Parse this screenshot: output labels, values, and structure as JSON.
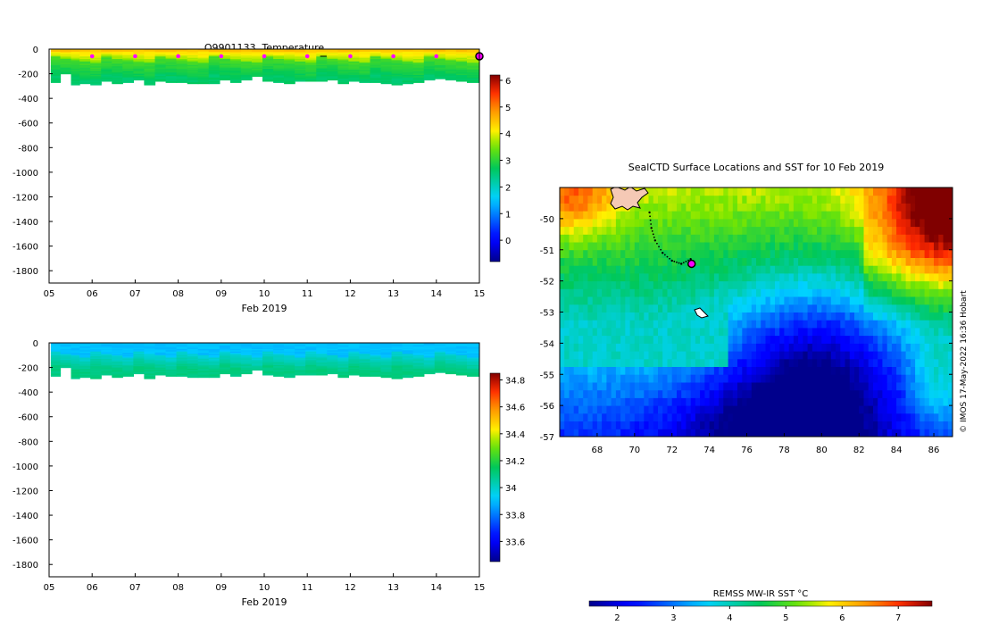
{
  "colors": {
    "axis": "#000000",
    "marker_magenta": "#ff00ff",
    "land_fill": "#f5c9b5"
  },
  "chart_data": [
    {
      "id": "temperature",
      "type": "heatmap",
      "title": "Q9901133  Temperature",
      "xlabel": "Feb 2019",
      "ylabel": "",
      "x_ticks": [
        "05",
        "06",
        "07",
        "08",
        "09",
        "10",
        "11",
        "12",
        "13",
        "14",
        "15"
      ],
      "xlim": [
        5,
        15
      ],
      "ylim": [
        -1900,
        0
      ],
      "y_ticks": [
        0,
        -200,
        -400,
        -600,
        -800,
        -1000,
        -1200,
        -1400,
        -1600,
        -1800
      ],
      "colorbar": {
        "min": -0.8,
        "max": 6.2,
        "ticks": [
          0,
          1,
          2,
          3,
          4,
          5,
          6
        ]
      },
      "surface_markers_day": [
        6,
        7,
        8,
        9,
        10,
        11,
        12,
        13,
        14
      ],
      "profiles": {
        "day": [
          5.08,
          5.3,
          5.55,
          5.75,
          6.0,
          6.25,
          6.5,
          6.75,
          7.0,
          7.25,
          7.5,
          7.75,
          8.0,
          8.25,
          8.5,
          8.75,
          9.0,
          9.25,
          9.5,
          9.75,
          10.0,
          10.25,
          10.5,
          10.75,
          11.0,
          11.25,
          11.5,
          11.75,
          12.0,
          12.25,
          12.5,
          12.75,
          13.0,
          13.25,
          13.5,
          13.75,
          14.0,
          14.25,
          14.5,
          14.75
        ],
        "depth_m": [
          270,
          200,
          285,
          280,
          290,
          260,
          275,
          270,
          250,
          285,
          260,
          265,
          270,
          275,
          280,
          280,
          250,
          270,
          250,
          220,
          255,
          270,
          280,
          260,
          260,
          255,
          250,
          280,
          260,
          270,
          265,
          275,
          290,
          275,
          270,
          250,
          240,
          250,
          260,
          270
        ]
      }
    },
    {
      "id": "salinity",
      "type": "heatmap",
      "title": "",
      "xlabel": "Feb 2019",
      "ylabel": "",
      "x_ticks": [
        "05",
        "06",
        "07",
        "08",
        "09",
        "10",
        "11",
        "12",
        "13",
        "14",
        "15"
      ],
      "xlim": [
        5,
        15
      ],
      "ylim": [
        -1900,
        0
      ],
      "y_ticks": [
        0,
        -200,
        -400,
        -600,
        -800,
        -1000,
        -1200,
        -1400,
        -1600,
        -1800
      ],
      "colorbar": {
        "min": 33.45,
        "max": 34.85,
        "ticks": [
          "33.6",
          "33.8",
          "34",
          "34.2",
          "34.4",
          "34.6",
          "34.8"
        ]
      }
    },
    {
      "id": "sst_map",
      "type": "heatmap",
      "title": "SealCTD Surface Locations and SST for 10 Feb 2019",
      "x_ticks": [
        68,
        70,
        72,
        74,
        76,
        78,
        80,
        82,
        84,
        86
      ],
      "xlim": [
        66,
        87
      ],
      "y_ticks": [
        -50,
        -51,
        -52,
        -53,
        -54,
        -55,
        -56,
        -57
      ],
      "ylim": [
        -57,
        -49
      ],
      "colorbar_label": "REMSS MW-IR SST °C",
      "colorbar": {
        "min": 1.5,
        "max": 7.6,
        "ticks": [
          2,
          3,
          4,
          5,
          6,
          7
        ]
      },
      "track": [
        [
          70.8,
          -49.8
        ],
        [
          70.9,
          -50.3
        ],
        [
          71.1,
          -50.7
        ],
        [
          71.5,
          -51.1
        ],
        [
          72.0,
          -51.35
        ],
        [
          72.5,
          -51.45
        ],
        [
          73.0,
          -51.3
        ],
        [
          73.1,
          -51.5
        ]
      ],
      "latest_position": [
        73.05,
        -51.45
      ],
      "watermark": "© IMOS 17-May-2022 16:36 Hobart"
    }
  ]
}
